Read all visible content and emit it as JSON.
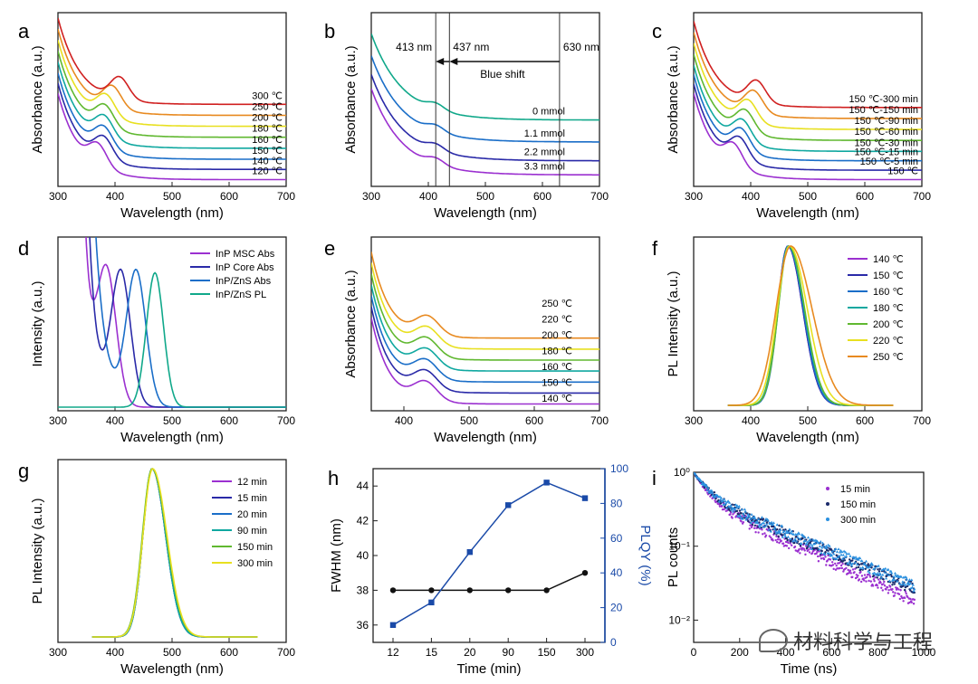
{
  "chart_data": [
    {
      "id": "a",
      "panel_label": "a",
      "type": "line",
      "xlabel": "Wavelength (nm)",
      "ylabel": "Absorbance (a.u.)",
      "xlim": [
        300,
        700
      ],
      "xticks": [
        300,
        400,
        500,
        600,
        700
      ],
      "yscale": "arbitrary",
      "style": "abs",
      "series": [
        {
          "name": "120 ℃",
          "color": "#9b30d0",
          "peak": 370,
          "tail": 0.02
        },
        {
          "name": "140 ℃",
          "color": "#2a2aa8",
          "peak": 380,
          "tail": 0.085
        },
        {
          "name": "150 ℃",
          "color": "#1a6ec8",
          "peak": 380,
          "tail": 0.15
        },
        {
          "name": "160 ℃",
          "color": "#10a8a0",
          "peak": 381,
          "tail": 0.22
        },
        {
          "name": "180 ℃",
          "color": "#60b830",
          "peak": 382,
          "tail": 0.29
        },
        {
          "name": "200 ℃",
          "color": "#e8e020",
          "peak": 384,
          "tail": 0.36
        },
        {
          "name": "250 ℃",
          "color": "#e88a20",
          "peak": 395,
          "tail": 0.43
        },
        {
          "name": "300 ℃",
          "color": "#d02020",
          "peak": 408,
          "tail": 0.5
        }
      ]
    },
    {
      "id": "b",
      "panel_label": "b",
      "type": "line",
      "xlabel": "Wavelength (nm)",
      "ylabel": "Absorbance (a.u.)",
      "xlim": [
        300,
        700
      ],
      "xticks": [
        300,
        400,
        500,
        600,
        700
      ],
      "yscale": "arbitrary",
      "style": "absB",
      "series": [
        {
          "name": "3.3 mmol",
          "color": "#9b30d0",
          "peak": 413,
          "tail": 0.05
        },
        {
          "name": "2.2 mmol",
          "color": "#2a2aa8",
          "peak": 413,
          "tail": 0.14
        },
        {
          "name": "1.1 mmol",
          "color": "#1a6ec8",
          "peak": 413,
          "tail": 0.26
        },
        {
          "name": "0 mmol",
          "color": "#10a88a",
          "peak": 413,
          "tail": 0.4
        }
      ],
      "annotations": [
        "413 nm",
        "437 nm",
        "630 nm",
        "Blue shift"
      ],
      "vlines": [
        413,
        437,
        630
      ]
    },
    {
      "id": "c",
      "panel_label": "c",
      "type": "line",
      "xlabel": "Wavelength (nm)",
      "ylabel": "Absorbance (a.u.)",
      "xlim": [
        300,
        700
      ],
      "xticks": [
        300,
        400,
        500,
        600,
        700
      ],
      "yscale": "arbitrary",
      "style": "abs",
      "series": [
        {
          "name": "150 ℃",
          "color": "#9b30d0",
          "peak": 370,
          "tail": 0.02
        },
        {
          "name": "150 ℃-5 min",
          "color": "#2a2aa8",
          "peak": 380,
          "tail": 0.08
        },
        {
          "name": "150 ℃-15 min",
          "color": "#1a6ec8",
          "peak": 383,
          "tail": 0.14
        },
        {
          "name": "150 ℃-30 min",
          "color": "#10a8a0",
          "peak": 385,
          "tail": 0.2
        },
        {
          "name": "150 ℃-60 min",
          "color": "#60b830",
          "peak": 390,
          "tail": 0.27
        },
        {
          "name": "150 ℃-90 min",
          "color": "#e8e020",
          "peak": 395,
          "tail": 0.34
        },
        {
          "name": "150 ℃-150 min",
          "color": "#e88a20",
          "peak": 405,
          "tail": 0.41
        },
        {
          "name": "150 ℃-300 min",
          "color": "#d02020",
          "peak": 410,
          "tail": 0.48
        }
      ]
    },
    {
      "id": "d",
      "panel_label": "d",
      "type": "line",
      "xlabel": "Wavelength (nm)",
      "ylabel": "Intensity (a.u.)",
      "xlim": [
        300,
        700
      ],
      "xticks": [
        300,
        400,
        500,
        600,
        700
      ],
      "yscale": "arbitrary",
      "style": "mixed",
      "series": [
        {
          "name": "InP MSC Abs",
          "color": "#9b30d0",
          "peak": 385,
          "kind": "abs"
        },
        {
          "name": "InP Core Abs",
          "color": "#2a2aa8",
          "peak": 410,
          "kind": "abs"
        },
        {
          "name": "InP/ZnS Abs",
          "color": "#1a6ec8",
          "peak": 437,
          "kind": "abs"
        },
        {
          "name": "InP/ZnS PL",
          "color": "#10a88a",
          "peak": 470,
          "kind": "pl"
        }
      ]
    },
    {
      "id": "e",
      "panel_label": "e",
      "type": "line",
      "xlabel": "Wavelength (nm)",
      "ylabel": "Absorbance (a.u.)",
      "xlim": [
        350,
        700
      ],
      "xticks": [
        400,
        500,
        600,
        700
      ],
      "yscale": "arbitrary",
      "style": "absE",
      "series": [
        {
          "name": "140 ℃",
          "color": "#9b30d0",
          "peak": 433,
          "tail": 0.02
        },
        {
          "name": "150 ℃",
          "color": "#2a2aa8",
          "peak": 433,
          "tail": 0.09
        },
        {
          "name": "160 ℃",
          "color": "#1a6ec8",
          "peak": 433,
          "tail": 0.16
        },
        {
          "name": "180 ℃",
          "color": "#10a8a0",
          "peak": 434,
          "tail": 0.23
        },
        {
          "name": "200 ℃",
          "color": "#60b830",
          "peak": 434,
          "tail": 0.3
        },
        {
          "name": "220 ℃",
          "color": "#e8e020",
          "peak": 435,
          "tail": 0.37
        },
        {
          "name": "250 ℃",
          "color": "#e88a20",
          "peak": 436,
          "tail": 0.44
        }
      ]
    },
    {
      "id": "f",
      "panel_label": "f",
      "type": "line",
      "xlabel": "Wavelength (nm)",
      "ylabel": "PL Intensity (a.u.)",
      "xlim": [
        300,
        700
      ],
      "xticks": [
        300,
        400,
        500,
        600,
        700
      ],
      "yscale": "arbitrary",
      "style": "pl",
      "series": [
        {
          "name": "140 ℃",
          "color": "#9b30d0",
          "peak": 465,
          "width": 21
        },
        {
          "name": "150 ℃",
          "color": "#2a2aa8",
          "peak": 465,
          "width": 21
        },
        {
          "name": "160 ℃",
          "color": "#1a6ec8",
          "peak": 466,
          "width": 21
        },
        {
          "name": "180 ℃",
          "color": "#10a8a0",
          "peak": 466,
          "width": 22
        },
        {
          "name": "200 ℃",
          "color": "#60b830",
          "peak": 467,
          "width": 22
        },
        {
          "name": "220 ℃",
          "color": "#e8e020",
          "peak": 468,
          "width": 25
        },
        {
          "name": "250 ℃",
          "color": "#e88a20",
          "peak": 470,
          "width": 30
        }
      ]
    },
    {
      "id": "g",
      "panel_label": "g",
      "type": "line",
      "xlabel": "Wavelength (nm)",
      "ylabel": "PL Intensity (a.u.)",
      "xlim": [
        300,
        700
      ],
      "xticks": [
        300,
        400,
        500,
        600,
        700
      ],
      "yscale": "arbitrary",
      "style": "pl",
      "series": [
        {
          "name": "12 min",
          "color": "#9b30d0",
          "peak": 465,
          "width": 19
        },
        {
          "name": "15 min",
          "color": "#2a2aa8",
          "peak": 465,
          "width": 19
        },
        {
          "name": "20 min",
          "color": "#1a6ec8",
          "peak": 465,
          "width": 19
        },
        {
          "name": "90 min",
          "color": "#10a8a0",
          "peak": 465,
          "width": 19
        },
        {
          "name": "150 min",
          "color": "#60b830",
          "peak": 465,
          "width": 20
        },
        {
          "name": "300 min",
          "color": "#e8e020",
          "peak": 466,
          "width": 20
        }
      ]
    },
    {
      "id": "h",
      "panel_label": "h",
      "type": "line",
      "xlabel": "Time (min)",
      "ylabel": "FWHM (nm)",
      "ylabel2": "PLQY (%)",
      "categories": [
        "12",
        "15",
        "20",
        "90",
        "150",
        "300"
      ],
      "ylim": [
        35,
        45
      ],
      "yticks": [
        36,
        38,
        40,
        42,
        44
      ],
      "ylim2": [
        0,
        100
      ],
      "yticks2": [
        0,
        20,
        40,
        60,
        80,
        100
      ],
      "series": [
        {
          "name": "FWHM",
          "color": "#111111",
          "axis": "left",
          "values": [
            38,
            38,
            38,
            38,
            38,
            39
          ]
        },
        {
          "name": "PLQY",
          "color": "#1a4aa8",
          "axis": "right",
          "values": [
            10,
            23,
            52,
            79,
            92,
            83
          ]
        }
      ]
    },
    {
      "id": "i",
      "panel_label": "i",
      "type": "scatter",
      "xlabel": "Time (ns)",
      "ylabel": "PL counts",
      "xlim": [
        0,
        1000
      ],
      "xticks": [
        0,
        200,
        400,
        600,
        800,
        1000
      ],
      "yscale": "log",
      "ylim": [
        0.005,
        1
      ],
      "yticks": [
        "10⁰",
        "10⁻¹",
        "10⁻²"
      ],
      "series": [
        {
          "name": "15 min",
          "color": "#9b30d0",
          "marker": "dot"
        },
        {
          "name": "150 min",
          "color": "#1a2a6a",
          "marker": "dot"
        },
        {
          "name": "300 min",
          "color": "#2a90e0",
          "marker": "triangle"
        }
      ]
    }
  ],
  "watermark": "材料科学与工程"
}
